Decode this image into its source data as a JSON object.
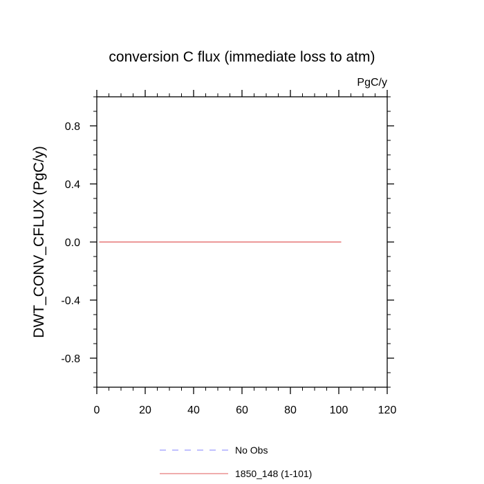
{
  "chart_data": {
    "type": "line",
    "title": "conversion C flux (immediate loss to atm)",
    "units": "PgC/y",
    "xlabel": "",
    "ylabel": "DWT_CONV_CFLUX  (PgC/y)",
    "xlim": [
      0,
      120
    ],
    "ylim": [
      -1.0,
      1.0
    ],
    "x_ticks": [
      0,
      20,
      40,
      60,
      80,
      100,
      120
    ],
    "y_ticks": [
      -0.8,
      -0.4,
      0.0,
      0.4,
      0.8
    ],
    "y_tick_labels": [
      "-0.8",
      "-0.4",
      "0.0",
      "0.4",
      "0.8"
    ],
    "series": [
      {
        "name": "No Obs",
        "color": "#8080ff",
        "style": "dashed",
        "x": [],
        "y": []
      },
      {
        "name": "1850_148 (1-101)",
        "color": "#e05a5a",
        "style": "solid",
        "x": [
          1,
          101
        ],
        "y": [
          0.0,
          0.0
        ]
      }
    ],
    "legend_position": "bottom",
    "grid": false
  }
}
